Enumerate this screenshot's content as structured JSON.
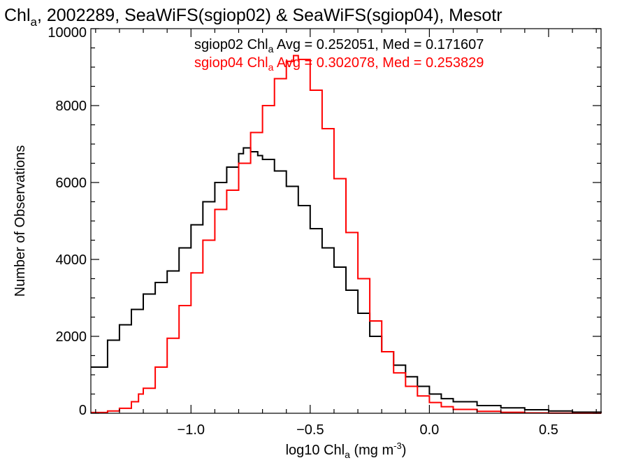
{
  "chart_data": {
    "type": "line",
    "step": true,
    "title": {
      "prefix": "Chl",
      "sub": "a",
      "rest": ", 2002289, SeaWiFS(sgiop02) & SeaWiFS(sgiop04), Mesotr"
    },
    "xlabel": {
      "prefix": "log10 Chl",
      "sub": "a",
      "mid": " (mg m",
      "sup": "-3",
      "suffix": ")"
    },
    "ylabel": "Number of Observations",
    "xlim": [
      -1.42,
      0.72
    ],
    "ylim": [
      0,
      10000
    ],
    "xticks": [
      {
        "value": -1.0,
        "label": "−1.0"
      },
      {
        "value": -0.5,
        "label": "−0.5"
      },
      {
        "value": 0.0,
        "label": "0.0"
      },
      {
        "value": 0.5,
        "label": "0.5"
      }
    ],
    "yticks": [
      {
        "value": 0,
        "label": "0"
      },
      {
        "value": 2000,
        "label": "2000"
      },
      {
        "value": 4000,
        "label": "4000"
      },
      {
        "value": 6000,
        "label": "6000"
      },
      {
        "value": 8000,
        "label": "8000"
      },
      {
        "value": 10000,
        "label": "10000"
      }
    ],
    "annotations": [
      {
        "prefix": "sgiop02 Chl",
        "sub": "a",
        "rest": " Avg = 0.252051, Med = 0.171607",
        "color": "#000000"
      },
      {
        "prefix": "sgiop04 Chl",
        "sub": "a",
        "rest": " Avg = 0.302078, Med = 0.253829",
        "color": "#ff0000"
      }
    ],
    "series": [
      {
        "color": "#000000",
        "x": [
          -1.42,
          -1.35,
          -1.3,
          -1.25,
          -1.2,
          -1.15,
          -1.1,
          -1.05,
          -1.0,
          -0.95,
          -0.9,
          -0.85,
          -0.8,
          -0.78,
          -0.75,
          -0.72,
          -0.7,
          -0.65,
          -0.6,
          -0.55,
          -0.5,
          -0.45,
          -0.4,
          -0.35,
          -0.3,
          -0.25,
          -0.2,
          -0.15,
          -0.1,
          -0.05,
          0.0,
          0.05,
          0.1,
          0.2,
          0.3,
          0.4,
          0.5,
          0.6,
          0.72
        ],
        "y": [
          1200,
          1900,
          2300,
          2700,
          3100,
          3400,
          3700,
          4300,
          4900,
          5500,
          6000,
          6400,
          6750,
          6900,
          6800,
          6700,
          6600,
          6300,
          5900,
          5400,
          4800,
          4300,
          3800,
          3200,
          2600,
          2000,
          1600,
          1250,
          950,
          700,
          500,
          380,
          300,
          200,
          140,
          90,
          60,
          30,
          10
        ]
      },
      {
        "color": "#ff0000",
        "x": [
          -1.42,
          -1.35,
          -1.3,
          -1.25,
          -1.22,
          -1.2,
          -1.15,
          -1.1,
          -1.05,
          -1.0,
          -0.95,
          -0.9,
          -0.85,
          -0.8,
          -0.75,
          -0.7,
          -0.65,
          -0.6,
          -0.57,
          -0.55,
          -0.5,
          -0.45,
          -0.4,
          -0.35,
          -0.3,
          -0.25,
          -0.2,
          -0.15,
          -0.1,
          -0.05,
          0.0,
          0.05,
          0.1,
          0.2,
          0.3,
          0.4,
          0.5,
          0.6,
          0.72
        ],
        "y": [
          20,
          60,
          130,
          300,
          500,
          650,
          1200,
          1950,
          2800,
          3650,
          4500,
          5300,
          5800,
          6500,
          7300,
          8000,
          8700,
          9150,
          9300,
          9200,
          8400,
          7400,
          6100,
          4700,
          3500,
          2400,
          1600,
          1050,
          700,
          450,
          280,
          170,
          100,
          50,
          25,
          10,
          5,
          2,
          0
        ]
      }
    ]
  }
}
